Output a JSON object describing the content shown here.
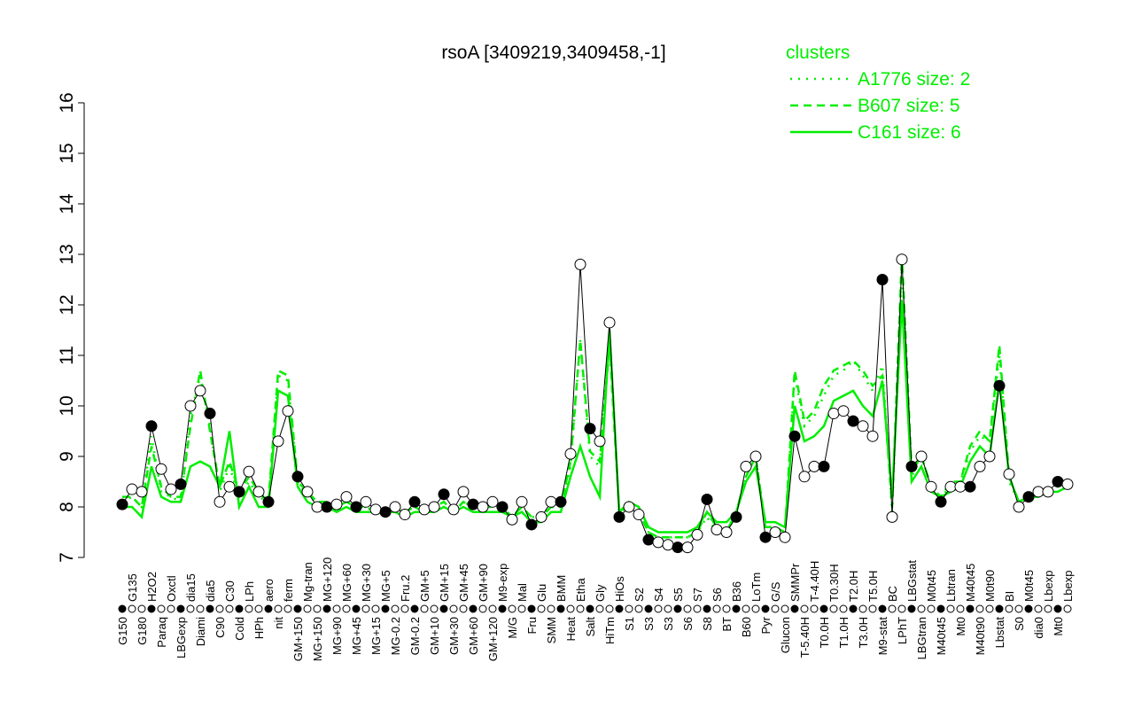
{
  "chart_data": {
    "type": "line",
    "title": "rsoA [3409219,3409458,-1]",
    "xlabel": "",
    "ylabel": "",
    "ylim": [
      7,
      16
    ],
    "yticks": [
      7,
      8,
      9,
      10,
      11,
      12,
      13,
      14,
      15,
      16
    ],
    "legend": {
      "title": "clusters",
      "placement": "top-right",
      "entries": [
        {
          "name": "A1776 size: 2",
          "style": "dotted"
        },
        {
          "name": "B607 size: 5",
          "style": "dashed"
        },
        {
          "name": "C161 size: 6",
          "style": "solid"
        }
      ]
    },
    "colors": {
      "main": "#000000",
      "cluster": "#00ee00"
    },
    "categories": [
      "G150",
      "G135",
      "G180",
      "H2O2",
      "Paraq",
      "Oxctl",
      "LBGexp",
      "dia15",
      "Diami",
      "dia5",
      "C90",
      "C30",
      "Cold",
      "LPh",
      "HPh",
      "aero",
      "nit",
      "ferm",
      "GM+150",
      "Mg-tran",
      "MG+150",
      "MG+120",
      "MG+90",
      "MG+60",
      "MG+45",
      "MG+30",
      "MG+15",
      "MG+5",
      "MG-0.2",
      "Fru.2",
      "GM-0.2",
      "GM+5",
      "GM+10",
      "GM+15",
      "GM+30",
      "GM+45",
      "GM+60",
      "GM+90",
      "GM+120",
      "M9-exp",
      "M/G",
      "Mal",
      "Fru",
      "Glu",
      "SMM",
      "BMM",
      "Heat",
      "Etha",
      "Salt",
      "Gly",
      "HiTm",
      "HiOs",
      "S1",
      "S2",
      "S3",
      "S4",
      "S3",
      "S5",
      "S6",
      "S7",
      "S8",
      "S6",
      "BT",
      "B36",
      "B60",
      "LoTm",
      "Pyr",
      "G/S",
      "Glucon",
      "SMMPr",
      "T-5.40H",
      "T-4.40H",
      "T0.0H",
      "T0.30H",
      "T1.0H",
      "T2.0H",
      "T3.0H",
      "T5.0H",
      "M9-stat",
      "BC",
      "LPhT",
      "LBGstat",
      "LBGtran",
      "M0t45",
      "M40t45",
      "Lbtran",
      "Mt0",
      "M40t45",
      "M40t90",
      "M0t90",
      "Lbstat",
      "BI",
      "S0",
      "M0t45",
      "dia0",
      "Lbexp",
      "Mt0",
      "Lbexp"
    ],
    "values": [
      8.05,
      8.35,
      8.3,
      9.6,
      8.75,
      8.35,
      8.45,
      10.0,
      10.3,
      9.85,
      8.1,
      8.4,
      8.3,
      8.7,
      8.3,
      8.1,
      9.3,
      9.9,
      8.6,
      8.3,
      8.0,
      8.0,
      8.05,
      8.2,
      8.0,
      8.1,
      7.95,
      7.9,
      8.0,
      7.85,
      8.1,
      7.95,
      8.0,
      8.25,
      7.95,
      8.3,
      8.05,
      8.0,
      8.1,
      8.0,
      7.75,
      8.1,
      7.65,
      7.8,
      8.1,
      8.1,
      9.05,
      12.8,
      9.55,
      9.3,
      11.65,
      7.8,
      8.0,
      7.85,
      7.35,
      7.3,
      7.25,
      7.2,
      7.2,
      7.45,
      8.15,
      7.55,
      7.5,
      7.8,
      8.8,
      9.0,
      7.4,
      7.5,
      7.4,
      9.4,
      8.6,
      8.8,
      8.8,
      9.85,
      9.9,
      9.7,
      9.6,
      9.4,
      12.5,
      7.8,
      12.9,
      8.8,
      9.0,
      8.4,
      8.1,
      8.4,
      8.4,
      8.4,
      8.8,
      9.0,
      10.4,
      8.65,
      8.0,
      8.2,
      8.3,
      8.3,
      8.5,
      8.45
    ],
    "series": [
      {
        "name": "A1776 size: 2",
        "values": [
          8.1,
          8.2,
          8.0,
          9.4,
          8.3,
          8.2,
          8.1,
          9.8,
          10.6,
          9.6,
          8.3,
          8.8,
          8.2,
          8.5,
          8.2,
          8.1,
          10.6,
          10.5,
          8.5,
          8.2,
          8.1,
          8.0,
          8.0,
          8.1,
          8.0,
          8.0,
          7.9,
          7.9,
          8.0,
          7.9,
          8.0,
          7.9,
          8.0,
          8.1,
          7.9,
          8.1,
          8.0,
          8.0,
          8.0,
          8.0,
          7.8,
          8.0,
          7.8,
          7.8,
          8.0,
          8.0,
          8.8,
          11.3,
          9.0,
          8.8,
          11.5,
          7.9,
          8.0,
          7.9,
          7.5,
          7.4,
          7.4,
          7.4,
          7.4,
          7.5,
          7.8,
          7.5,
          7.5,
          7.9,
          8.6,
          9.0,
          7.6,
          7.6,
          7.5,
          10.6,
          9.6,
          9.8,
          10.2,
          10.6,
          10.7,
          10.9,
          10.6,
          10.3,
          10.8,
          7.9,
          12.8,
          8.6,
          9.0,
          8.4,
          8.2,
          8.4,
          8.5,
          9.1,
          9.4,
          9.3,
          11.0,
          8.5,
          8.1,
          8.2,
          8.3,
          8.3,
          8.4,
          8.5
        ]
      },
      {
        "name": "B607 size: 5",
        "values": [
          8.2,
          8.2,
          8.0,
          9.2,
          8.4,
          8.2,
          8.2,
          9.6,
          10.7,
          9.5,
          8.4,
          8.9,
          8.3,
          8.6,
          8.3,
          8.1,
          10.7,
          10.6,
          8.5,
          8.3,
          8.1,
          8.1,
          8.0,
          8.1,
          8.0,
          8.0,
          7.9,
          7.9,
          8.0,
          7.9,
          8.0,
          7.9,
          8.0,
          8.1,
          7.9,
          8.1,
          8.0,
          8.0,
          8.0,
          8.0,
          7.8,
          8.0,
          7.8,
          7.8,
          8.0,
          8.0,
          8.9,
          11.3,
          9.1,
          8.9,
          11.2,
          7.9,
          8.0,
          7.9,
          7.5,
          7.4,
          7.4,
          7.4,
          7.4,
          7.5,
          7.9,
          7.6,
          7.5,
          7.9,
          8.6,
          9.0,
          7.6,
          7.6,
          7.5,
          10.7,
          9.7,
          9.9,
          10.4,
          10.7,
          10.8,
          10.9,
          10.7,
          10.4,
          10.6,
          8.0,
          13.0,
          8.7,
          9.0,
          8.4,
          8.2,
          8.5,
          8.5,
          9.2,
          9.5,
          9.3,
          11.2,
          8.6,
          8.1,
          8.2,
          8.3,
          8.3,
          8.4,
          8.5
        ]
      },
      {
        "name": "C161 size: 6",
        "values": [
          8.0,
          8.0,
          7.8,
          8.8,
          8.2,
          8.1,
          8.1,
          8.8,
          8.9,
          8.8,
          8.4,
          9.5,
          8.0,
          8.4,
          8.0,
          8.0,
          10.3,
          10.2,
          8.4,
          8.1,
          8.0,
          8.0,
          7.9,
          8.0,
          7.9,
          7.9,
          7.9,
          7.9,
          7.9,
          7.8,
          7.9,
          7.9,
          7.9,
          8.0,
          7.9,
          8.0,
          7.9,
          7.9,
          7.9,
          7.9,
          7.8,
          7.9,
          7.7,
          7.7,
          7.9,
          7.9,
          8.6,
          9.2,
          8.6,
          8.2,
          11.5,
          7.9,
          8.1,
          8.0,
          7.6,
          7.5,
          7.5,
          7.5,
          7.5,
          7.6,
          7.9,
          7.7,
          7.7,
          7.9,
          8.5,
          8.8,
          7.7,
          7.7,
          7.6,
          10.0,
          9.3,
          9.4,
          9.6,
          10.1,
          10.2,
          10.3,
          10.0,
          9.8,
          10.5,
          8.2,
          12.1,
          8.5,
          8.8,
          8.3,
          8.2,
          8.3,
          8.4,
          8.9,
          9.2,
          9.0,
          10.5,
          8.6,
          8.1,
          8.2,
          8.2,
          8.3,
          8.3,
          8.4
        ]
      }
    ]
  }
}
